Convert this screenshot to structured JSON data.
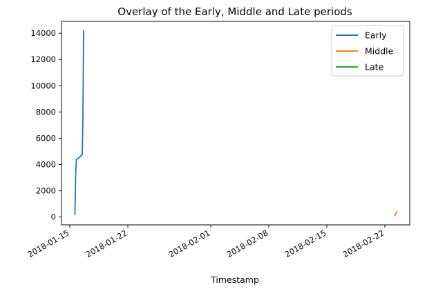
{
  "chart_data": {
    "type": "line",
    "title": "Overlay of the Early, Middle and Late periods",
    "xlabel": "Timestamp",
    "ylabel": "",
    "x_ticks": [
      "2018-01-15",
      "2018-01-22",
      "2018-02-01",
      "2018-02-08",
      "2018-02-15",
      "2018-02-22"
    ],
    "y_ticks": [
      0,
      2000,
      4000,
      6000,
      8000,
      10000,
      12000,
      14000
    ],
    "xlim": [
      "2018-01-14",
      "2018-02-25"
    ],
    "ylim": [
      -600,
      14900
    ],
    "grid": false,
    "legend_position": "top-right",
    "series": [
      {
        "name": "Early",
        "color": "#1f77b4",
        "points": [
          [
            "2018-01-15T15:00",
            200
          ],
          [
            "2018-01-15T17:00",
            3200
          ],
          [
            "2018-01-15T19:00",
            4400
          ],
          [
            "2018-01-16T00:00",
            4450
          ],
          [
            "2018-01-16T06:00",
            4600
          ],
          [
            "2018-01-16T12:00",
            4750
          ],
          [
            "2018-01-16T14:00",
            7500
          ],
          [
            "2018-01-16T16:00",
            14200
          ]
        ]
      },
      {
        "name": "Middle",
        "color": "#ff7f0e",
        "points": [
          [
            "2018-02-23T05:00",
            100
          ],
          [
            "2018-02-23T08:00",
            300
          ],
          [
            "2018-02-23T11:00",
            400
          ]
        ]
      },
      {
        "name": "Late",
        "color": "#2ca02c",
        "points": []
      }
    ]
  }
}
